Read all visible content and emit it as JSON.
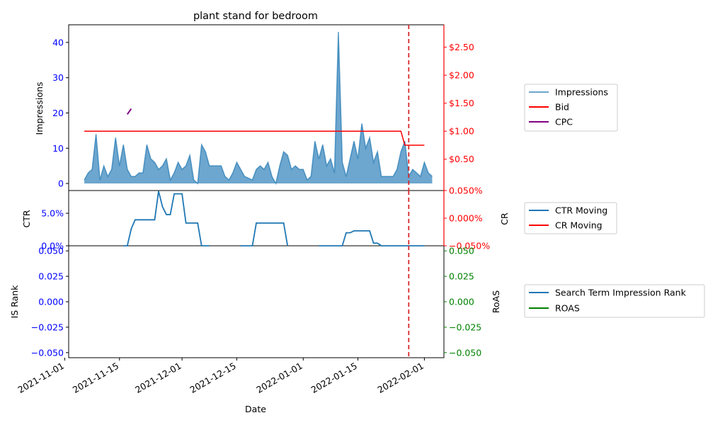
{
  "title": "plant stand for bedroom",
  "colors": {
    "impressions_fill": "#1f77b4",
    "impressions_line": "#1f77b4",
    "bid": "#ff0000",
    "cpc": "#800080",
    "ctr": "#1f77b4",
    "cr": "#ff0000",
    "is_rank": "#1f77b4",
    "roas": "#008000",
    "event_line": "#d62728",
    "left_axis_ticks": "#0000ff",
    "right_axis_top": "#ff0000",
    "right_axis_bottom": "#008000"
  },
  "chart_data": [
    {
      "type": "area",
      "panel": "top",
      "xlabel": "Date",
      "ylabel": "Impressions",
      "y2label": "",
      "ylim": [
        -2,
        45
      ],
      "y2lim": [
        -0.06,
        2.9
      ],
      "yticks": [
        "0",
        "10",
        "20",
        "30",
        "40"
      ],
      "y2ticks": [
        "$0.50",
        "$1.00",
        "$1.50",
        "$2.00",
        "$2.50"
      ],
      "y2tick_values": [
        0.5,
        1.0,
        1.5,
        2.0,
        2.5
      ],
      "legend": [
        "Impressions",
        "Bid",
        "CPC"
      ],
      "legend_position": "right",
      "impressions": {
        "start_date": "2021-11-06",
        "values": [
          1,
          3,
          4,
          14,
          1,
          5,
          2,
          4,
          13,
          5,
          11,
          4,
          2,
          2,
          3,
          3,
          11,
          7,
          6,
          4,
          5,
          7,
          1,
          3,
          6,
          4,
          5,
          8,
          1,
          0,
          11,
          9,
          5,
          5,
          5,
          5,
          2,
          1,
          3,
          6,
          4,
          2,
          1.5,
          1,
          4,
          5,
          4,
          6,
          2,
          0,
          5,
          9,
          8,
          4,
          5,
          4,
          4,
          1,
          2,
          12,
          7,
          11,
          5,
          7,
          3,
          43,
          6,
          2,
          7,
          12,
          7,
          17,
          10,
          13,
          6,
          9,
          2,
          2,
          2,
          2,
          4,
          9,
          12,
          2,
          4,
          3,
          2,
          6,
          3,
          2
        ]
      },
      "bid": {
        "points": [
          [
            "2021-11-06",
            1.0
          ],
          [
            "2022-01-26",
            1.0
          ],
          [
            "2022-01-27",
            0.75
          ],
          [
            "2022-02-01",
            0.75
          ]
        ]
      },
      "cpc": {
        "points": [
          [
            "2021-11-17",
            1.3
          ],
          [
            "2021-11-18",
            1.4
          ]
        ]
      },
      "vline_date": "2022-01-28"
    },
    {
      "type": "line",
      "panel": "middle",
      "ylabel": "CTR",
      "y2label": "CR",
      "ylim": [
        0,
        8.5
      ],
      "y2lim": [
        -0.05,
        0.05
      ],
      "yticks": [
        "0.0%",
        "5.0%"
      ],
      "ytick_values": [
        0,
        5
      ],
      "y2ticks": [
        "−0.050%",
        "0.000%",
        "0.050%"
      ],
      "y2tick_values": [
        -0.05,
        0.0,
        0.05
      ],
      "legend": [
        "CTR Moving",
        "CR Moving"
      ],
      "legend_position": "right",
      "ctr_segments": [
        [
          [
            "2021-11-16",
            0
          ],
          [
            "2021-11-17",
            0
          ],
          [
            "2021-11-18",
            2.6
          ],
          [
            "2021-11-19",
            4.0
          ],
          [
            "2021-11-24",
            4.0
          ],
          [
            "2021-11-25",
            8.4
          ],
          [
            "2021-11-26",
            6.0
          ],
          [
            "2021-11-27",
            4.8
          ],
          [
            "2021-11-28",
            4.8
          ],
          [
            "2021-11-29",
            8.0
          ],
          [
            "2021-12-01",
            8.0
          ],
          [
            "2021-12-02",
            3.5
          ],
          [
            "2021-12-05",
            3.5
          ],
          [
            "2021-12-06",
            0
          ],
          [
            "2021-12-08",
            0
          ]
        ],
        [
          [
            "2021-12-16",
            0
          ],
          [
            "2021-12-19",
            0
          ],
          [
            "2021-12-20",
            3.5
          ],
          [
            "2021-12-27",
            3.5
          ],
          [
            "2021-12-28",
            0
          ]
        ],
        [
          [
            "2022-01-05",
            0
          ],
          [
            "2022-01-11",
            0
          ],
          [
            "2022-01-12",
            2.0
          ],
          [
            "2022-01-13",
            2.0
          ],
          [
            "2022-01-14",
            2.3
          ],
          [
            "2022-01-18",
            2.3
          ],
          [
            "2022-01-19",
            0.4
          ],
          [
            "2022-01-20",
            0.4
          ],
          [
            "2022-01-21",
            0
          ],
          [
            "2022-02-01",
            0
          ]
        ]
      ],
      "vline_date": "2022-01-28"
    },
    {
      "type": "line",
      "panel": "bottom",
      "ylabel": "IS Rank",
      "y2label": "RoAS",
      "ylim": [
        -0.055,
        0.055
      ],
      "y2lim": [
        -0.055,
        0.055
      ],
      "yticks": [
        "0.050",
        "0.025",
        "0.000",
        "−0.025",
        "−0.050"
      ],
      "ytick_values": [
        0.05,
        0.025,
        0.0,
        -0.025,
        -0.05
      ],
      "y2ticks": [
        "0.050",
        "0.025",
        "0.000",
        "−0.025",
        "−0.050"
      ],
      "y2tick_values": [
        0.05,
        0.025,
        0.0,
        -0.025,
        -0.05
      ],
      "legend": [
        "Search Term Impression Rank",
        "ROAS"
      ],
      "legend_position": "right",
      "xticks": [
        "2021-11-01",
        "2021-11-15",
        "2021-12-01",
        "2021-12-15",
        "2022-01-01",
        "2022-01-15",
        "2022-02-01"
      ],
      "xlim": [
        "2021-11-02",
        "2022-02-06"
      ],
      "vline_date": "2022-01-28"
    }
  ]
}
